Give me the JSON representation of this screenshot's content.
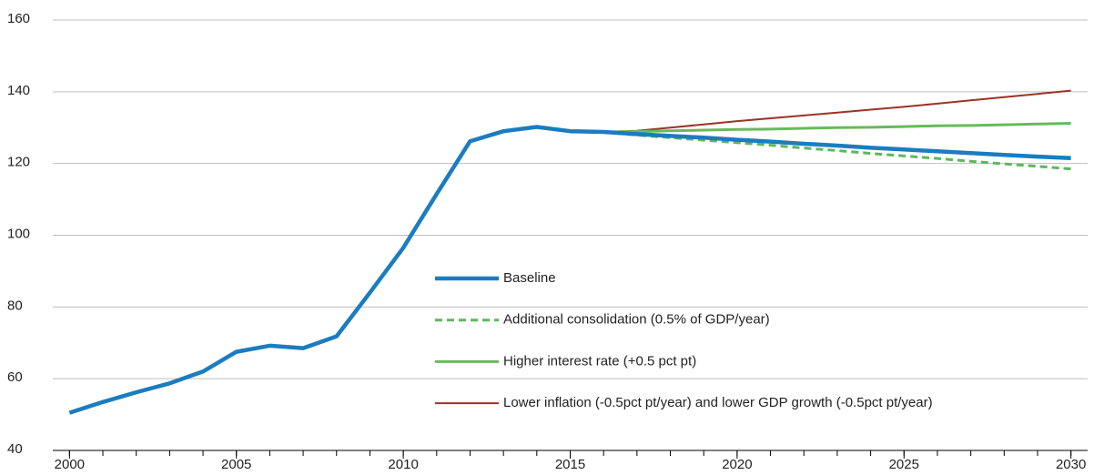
{
  "chart_data": {
    "type": "line",
    "x": [
      2000,
      2001,
      2002,
      2003,
      2004,
      2005,
      2006,
      2007,
      2008,
      2009,
      2010,
      2011,
      2012,
      2013,
      2014,
      2015,
      2016,
      2017,
      2018,
      2019,
      2020,
      2021,
      2022,
      2023,
      2024,
      2025,
      2026,
      2027,
      2028,
      2029,
      2030
    ],
    "xlim": [
      1999.5,
      2030.5
    ],
    "xticks": [
      2000,
      2005,
      2010,
      2015,
      2020,
      2025,
      2030
    ],
    "ylim": [
      40,
      160
    ],
    "yticks": [
      40,
      60,
      80,
      100,
      120,
      140,
      160
    ],
    "grid": true,
    "legend": "center",
    "series": [
      {
        "name": "Baseline",
        "color": "#1b7cc0",
        "width": 4.5,
        "style": "solid",
        "values": [
          50.5,
          53.5,
          56.2,
          58.7,
          62,
          67.5,
          69.2,
          68.5,
          71.8,
          84,
          96.5,
          111.5,
          126.2,
          129,
          130.2,
          129,
          128.8,
          128.2,
          127.7,
          127.2,
          126.6,
          126.1,
          125.5,
          125,
          124.4,
          123.9,
          123.4,
          122.9,
          122.4,
          121.9,
          121.5
        ]
      },
      {
        "name": "Additional consolidation (0.5% of GDP/year)",
        "color": "#5cb85c",
        "width": 3,
        "style": "dashed",
        "values": [
          null,
          null,
          null,
          null,
          null,
          null,
          null,
          null,
          null,
          null,
          null,
          null,
          null,
          null,
          null,
          null,
          128.8,
          127.9,
          127.2,
          126.5,
          125.8,
          125.1,
          124.3,
          123.6,
          122.8,
          122.1,
          121.4,
          120.6,
          119.9,
          119.2,
          118.5
        ]
      },
      {
        "name": "Higher interest rate (+0.5 pct pt)",
        "color": "#66bb5a",
        "width": 3,
        "style": "solid",
        "values": [
          null,
          null,
          null,
          null,
          null,
          null,
          null,
          null,
          null,
          null,
          null,
          null,
          null,
          null,
          null,
          null,
          128.8,
          128.9,
          129.1,
          129.3,
          129.5,
          129.6,
          129.8,
          130,
          130.1,
          130.3,
          130.5,
          130.6,
          130.8,
          131,
          131.2
        ]
      },
      {
        "name": "Lower inflation (-0.5pct pt/year) and lower GDP growth (-0.5pct pt/year)",
        "color": "#9b3328",
        "width": 2,
        "style": "solid",
        "values": [
          null,
          null,
          null,
          null,
          null,
          null,
          null,
          null,
          null,
          null,
          null,
          null,
          null,
          null,
          null,
          null,
          128.8,
          129.1,
          130,
          130.9,
          131.8,
          132.6,
          133.4,
          134.2,
          135,
          135.8,
          136.7,
          137.6,
          138.5,
          139.4,
          140.3
        ]
      }
    ]
  }
}
